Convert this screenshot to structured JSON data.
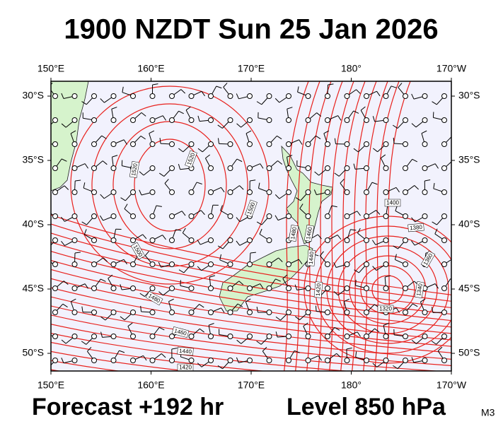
{
  "title": "1900 NZDT Sun 25 Jan 2026",
  "axes": {
    "top": [
      "150°E",
      "160°E",
      "170°E",
      "180°",
      "170°W"
    ],
    "bottom": [
      "150°E",
      "160°E",
      "170°E",
      "180°",
      "170°W"
    ],
    "left": [
      "30°S",
      "35°S",
      "40°S",
      "45°S",
      "50°S"
    ],
    "right": [
      "30°S",
      "35°S",
      "40°S",
      "45°S",
      "50°S"
    ]
  },
  "contour_labels": [
    "1520",
    "1520",
    "1500",
    "1480",
    "1460",
    "1440",
    "1420",
    "1400",
    "1380",
    "1360",
    "1340",
    "1320",
    "1500",
    "1480",
    "1460",
    "1440",
    "1420"
  ],
  "footer": {
    "forecast": "Forecast +192 hr",
    "level": "Level 850 hPa",
    "model": "M3"
  }
}
